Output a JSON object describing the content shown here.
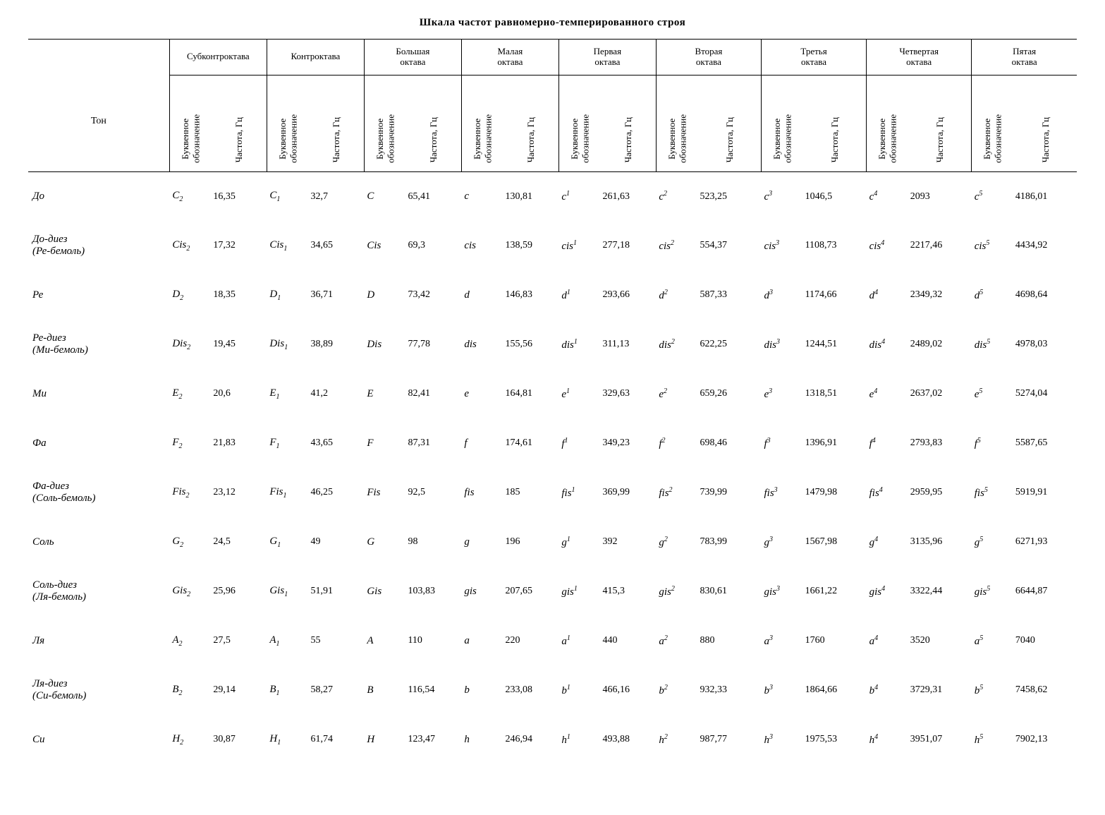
{
  "title": "Шкала частот равномерно-темперированного строя",
  "row_label": "Тон",
  "sub_headers": {
    "note": "Буквенное обозначение",
    "freq": "Частота, Гц"
  },
  "octaves": [
    {
      "name": "Субконтроктава",
      "suffix_type": "sub",
      "suffix": "2"
    },
    {
      "name": "Контроктава",
      "suffix_type": "sub",
      "suffix": "1"
    },
    {
      "name": "Большая октава",
      "suffix_type": "plainU",
      "suffix": ""
    },
    {
      "name": "Малая октава",
      "suffix_type": "plainL",
      "suffix": ""
    },
    {
      "name": "Первая октава",
      "suffix_type": "sup",
      "suffix": "1"
    },
    {
      "name": "Вторая октава",
      "suffix_type": "sup",
      "suffix": "2"
    },
    {
      "name": "Третья октава",
      "suffix_type": "sup",
      "suffix": "3"
    },
    {
      "name": "Четвертая октава",
      "suffix_type": "sup",
      "suffix": "4"
    },
    {
      "name": "Пятая октава",
      "suffix_type": "sup",
      "suffix": "5"
    }
  ],
  "tones": [
    {
      "label": "До",
      "upper": "C",
      "lower": "c",
      "freq": [
        "16,35",
        "32,7",
        "65,41",
        "130,81",
        "261,63",
        "523,25",
        "1046,5",
        "2093",
        "4186,01"
      ]
    },
    {
      "label": "До-диез\n(Ре-бемоль)",
      "upper": "Cis",
      "lower": "cis",
      "freq": [
        "17,32",
        "34,65",
        "69,3",
        "138,59",
        "277,18",
        "554,37",
        "1108,73",
        "2217,46",
        "4434,92"
      ]
    },
    {
      "label": "Ре",
      "upper": "D",
      "lower": "d",
      "freq": [
        "18,35",
        "36,71",
        "73,42",
        "146,83",
        "293,66",
        "587,33",
        "1174,66",
        "2349,32",
        "4698,64"
      ]
    },
    {
      "label": "Ре-диез\n(Ми-бемоль)",
      "upper": "Dis",
      "lower": "dis",
      "freq": [
        "19,45",
        "38,89",
        "77,78",
        "155,56",
        "311,13",
        "622,25",
        "1244,51",
        "2489,02",
        "4978,03"
      ]
    },
    {
      "label": "Ми",
      "upper": "E",
      "lower": "e",
      "freq": [
        "20,6",
        "41,2",
        "82,41",
        "164,81",
        "329,63",
        "659,26",
        "1318,51",
        "2637,02",
        "5274,04"
      ]
    },
    {
      "label": "Фа",
      "upper": "F",
      "lower": "f",
      "freq": [
        "21,83",
        "43,65",
        "87,31",
        "174,61",
        "349,23",
        "698,46",
        "1396,91",
        "2793,83",
        "5587,65"
      ]
    },
    {
      "label": "Фа-диез\n(Соль-бемоль)",
      "upper": "Fis",
      "lower": "fis",
      "freq": [
        "23,12",
        "46,25",
        "92,5",
        "185",
        "369,99",
        "739,99",
        "1479,98",
        "2959,95",
        "5919,91"
      ]
    },
    {
      "label": "Соль",
      "upper": "G",
      "lower": "g",
      "freq": [
        "24,5",
        "49",
        "98",
        "196",
        "392",
        "783,99",
        "1567,98",
        "3135,96",
        "6271,93"
      ]
    },
    {
      "label": "Соль-диез\n(Ля-бемоль)",
      "upper": "Gis",
      "lower": "gis",
      "freq": [
        "25,96",
        "51,91",
        "103,83",
        "207,65",
        "415,3",
        "830,61",
        "1661,22",
        "3322,44",
        "6644,87"
      ]
    },
    {
      "label": "Ля",
      "upper": "A",
      "lower": "a",
      "freq": [
        "27,5",
        "55",
        "110",
        "220",
        "440",
        "880",
        "1760",
        "3520",
        "7040"
      ]
    },
    {
      "label": "Ля-диез\n(Си-бемоль)",
      "upper": "B",
      "lower": "b",
      "freq": [
        "29,14",
        "58,27",
        "116,54",
        "233,08",
        "466,16",
        "932,33",
        "1864,66",
        "3729,31",
        "7458,62"
      ]
    },
    {
      "label": "Си",
      "upper": "H",
      "lower": "h",
      "freq": [
        "30,87",
        "61,74",
        "123,47",
        "246,94",
        "493,88",
        "987,77",
        "1975,53",
        "3951,07",
        "7902,13"
      ]
    }
  ],
  "style": {
    "background_color": "#ffffff",
    "text_color": "#000000",
    "rule_color": "#000000",
    "font_family": "Times New Roman, serif",
    "title_fontsize_pt": 11,
    "body_fontsize_pt": 10,
    "cell_fontsize_pt": 10,
    "italic_tones": true
  }
}
